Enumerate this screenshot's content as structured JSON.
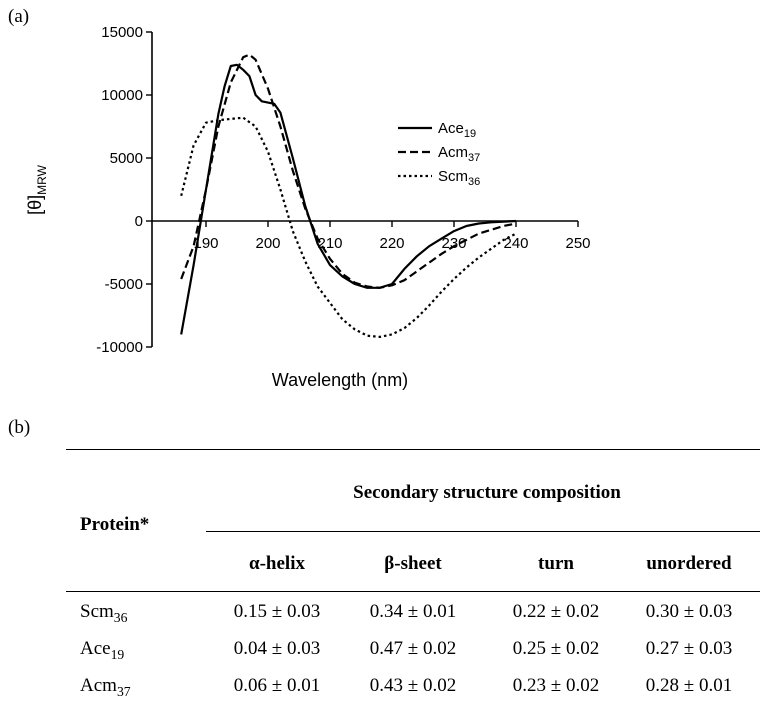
{
  "panels": {
    "a": "(a)",
    "b": "(b)"
  },
  "chart_data": {
    "type": "line",
    "title": "",
    "xlabel": "Wavelength (nm)",
    "ylabel": {
      "main": "[θ]",
      "sub": "MRW"
    },
    "xlim": [
      185,
      250
    ],
    "ylim": [
      -10000,
      15000
    ],
    "xticks": [
      190,
      200,
      210,
      220,
      230,
      240,
      250
    ],
    "yticks": [
      -10000,
      -5000,
      0,
      5000,
      10000,
      15000
    ],
    "grid": false,
    "legend_position": "right",
    "series": [
      {
        "name": {
          "main": "Ace",
          "sub": "19"
        },
        "style": "solid",
        "x": [
          186,
          188,
          190,
          192,
          193,
          194,
          195,
          196,
          197,
          198,
          199,
          200,
          201,
          202,
          204,
          206,
          208,
          210,
          212,
          214,
          216,
          218,
          220,
          222,
          224,
          226,
          228,
          230,
          232,
          234,
          236,
          238,
          240
        ],
        "y": [
          -9000,
          -3500,
          2500,
          8500,
          10700,
          12300,
          12400,
          12000,
          11500,
          10000,
          9500,
          9400,
          9300,
          8600,
          5000,
          1200,
          -1800,
          -3500,
          -4400,
          -5000,
          -5300,
          -5300,
          -5000,
          -3800,
          -2800,
          -2000,
          -1400,
          -800,
          -400,
          -200,
          -100,
          -50,
          0
        ]
      },
      {
        "name": {
          "main": "Acm",
          "sub": "37"
        },
        "style": "dashed",
        "x": [
          186,
          188,
          190,
          192,
          194,
          196,
          197,
          198,
          200,
          202,
          204,
          206,
          208,
          210,
          212,
          214,
          216,
          218,
          220,
          222,
          224,
          226,
          228,
          230,
          232,
          234,
          236,
          238,
          240
        ],
        "y": [
          -4600,
          -2000,
          2500,
          7500,
          11000,
          13000,
          13200,
          12800,
          10500,
          7500,
          4000,
          1000,
          -1400,
          -3000,
          -4200,
          -4900,
          -5200,
          -5300,
          -5100,
          -4700,
          -4000,
          -3300,
          -2600,
          -2000,
          -1500,
          -1000,
          -700,
          -400,
          -200
        ]
      },
      {
        "name": {
          "main": "Scm",
          "sub": "36"
        },
        "style": "dotted",
        "x": [
          186,
          188,
          190,
          192,
          194,
          196,
          198,
          200,
          202,
          204,
          206,
          208,
          210,
          212,
          214,
          216,
          218,
          220,
          222,
          224,
          226,
          228,
          230,
          232,
          234,
          236,
          238,
          240
        ],
        "y": [
          2000,
          6000,
          7800,
          8000,
          8100,
          8200,
          7500,
          5500,
          2500,
          -800,
          -3200,
          -5200,
          -6500,
          -7800,
          -8600,
          -9100,
          -9200,
          -9000,
          -8500,
          -7700,
          -6700,
          -5600,
          -4600,
          -3700,
          -2900,
          -2200,
          -1500,
          -1000
        ]
      }
    ]
  },
  "table": {
    "protein_header": "Protein*",
    "group_header": "Secondary structure composition",
    "columns": [
      "α-helix",
      "β-sheet",
      "turn",
      "unordered"
    ],
    "rows": [
      {
        "protein": {
          "main": "Scm",
          "sub": "36"
        },
        "values": [
          "0.15 ± 0.03",
          "0.34 ± 0.01",
          "0.22 ± 0.02",
          "0.30 ± 0.03"
        ]
      },
      {
        "protein": {
          "main": "Ace",
          "sub": "19"
        },
        "values": [
          "0.04 ± 0.03",
          "0.47 ± 0.02",
          "0.25 ± 0.02",
          "0.27 ± 0.03"
        ]
      },
      {
        "protein": {
          "main": "Acm",
          "sub": "37"
        },
        "values": [
          "0.06 ± 0.01",
          "0.43 ± 0.02",
          "0.23 ± 0.02",
          "0.28 ± 0.01"
        ]
      }
    ]
  }
}
